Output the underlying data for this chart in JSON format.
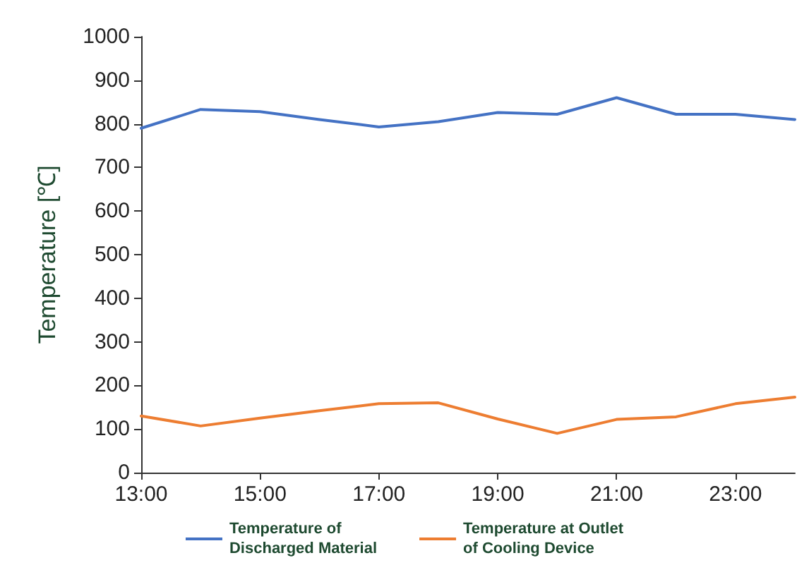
{
  "chart_data": {
    "type": "line",
    "ylabel": "Temperature [℃]",
    "x": [
      13,
      14,
      15,
      16,
      17,
      18,
      19,
      20,
      21,
      22,
      23,
      24
    ],
    "series": [
      {
        "name": "Temperature of\nDischarged Material",
        "color": "#4472c4",
        "values": [
          790,
          833,
          828,
          810,
          793,
          805,
          826,
          822,
          860,
          822,
          822,
          810
        ]
      },
      {
        "name": "Temperature at Outlet\nof Cooling Device",
        "color": "#ed7d31",
        "values": [
          130,
          107,
          125,
          142,
          158,
          160,
          123,
          90,
          122,
          128,
          158,
          173
        ]
      }
    ],
    "xlim": [
      13,
      24
    ],
    "xticks": [
      {
        "value": 13,
        "label": "13:00"
      },
      {
        "value": 15,
        "label": "15:00"
      },
      {
        "value": 17,
        "label": "17:00"
      },
      {
        "value": 19,
        "label": "19:00"
      },
      {
        "value": 21,
        "label": "21:00"
      },
      {
        "value": 23,
        "label": "23:00"
      }
    ],
    "ylim": [
      0,
      1000
    ],
    "yticks": [
      0,
      100,
      200,
      300,
      400,
      500,
      600,
      700,
      800,
      900,
      1000
    ],
    "grid": false,
    "legend": "bottom",
    "marker": "none",
    "line_style": "solid"
  }
}
